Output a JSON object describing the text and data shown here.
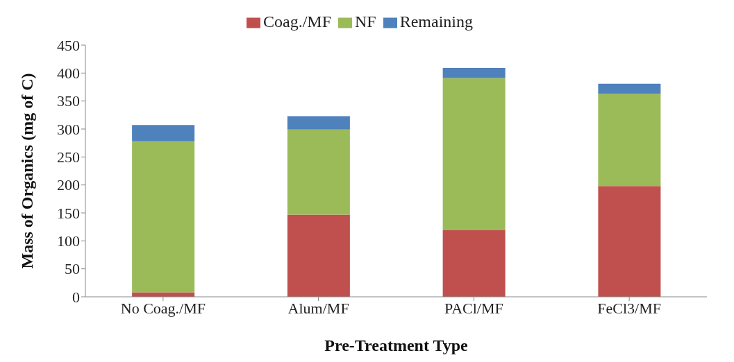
{
  "chart_data": {
    "type": "bar",
    "stacked": true,
    "xlabel": "Pre-Treatment Type",
    "ylabel": "Mass of Organics  (mg of C)",
    "categories": [
      "No Coag./MF",
      "Alum/MF",
      "PACl/MF",
      "FeCl3/MF"
    ],
    "series": [
      {
        "name": "Coag./MF",
        "color": "#c0504d",
        "values": [
          8,
          147,
          119,
          198
        ]
      },
      {
        "name": "NF",
        "color": "#9bbb59",
        "values": [
          270,
          152,
          272,
          165
        ]
      },
      {
        "name": "Remaining",
        "color": "#4f81bd",
        "values": [
          29,
          24,
          18,
          18
        ]
      }
    ],
    "ylim": [
      0,
      450
    ],
    "yticks": [
      0,
      50,
      100,
      150,
      200,
      250,
      300,
      350,
      400,
      450
    ],
    "grid": false,
    "legend": "top"
  }
}
